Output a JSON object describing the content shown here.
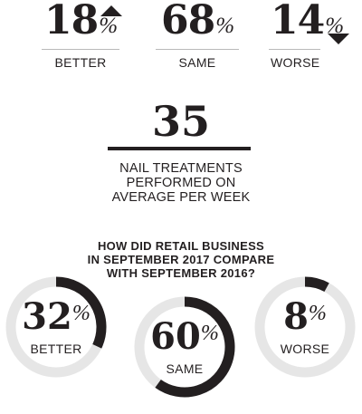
{
  "top_stats": [
    {
      "value": "18",
      "unit": "%",
      "label": "BETTER",
      "arrow": "up"
    },
    {
      "value": "68",
      "unit": "%",
      "label": "SAME",
      "arrow": "none"
    },
    {
      "value": "14",
      "unit": "%",
      "label": "WORSE",
      "arrow": "down"
    }
  ],
  "treatments": {
    "value": "35",
    "caption_lines": [
      "NAIL TREATMENTS",
      "PERFORMED ON",
      "AVERAGE PER WEEK"
    ]
  },
  "retail": {
    "question_lines": [
      "HOW DID RETAIL BUSINESS",
      "IN SEPTEMBER 2017 COMPARE",
      "WITH SEPTEMBER 2016?"
    ]
  },
  "colors": {
    "ink": "#231f20",
    "ring_track": "#e6e6e6",
    "rule": "#b9b9b9"
  },
  "chart_data": [
    {
      "type": "bar",
      "categories": [
        "BETTER",
        "SAME",
        "WORSE"
      ],
      "values": [
        18,
        68,
        14
      ],
      "unit": "%"
    },
    {
      "type": "pie",
      "categories": [
        "BETTER",
        "SAME",
        "WORSE"
      ],
      "values": [
        32,
        60,
        8
      ],
      "unit": "%",
      "question": "HOW DID RETAIL BUSINESS IN SEPTEMBER 2017 COMPARE WITH SEPTEMBER 2016?"
    }
  ]
}
